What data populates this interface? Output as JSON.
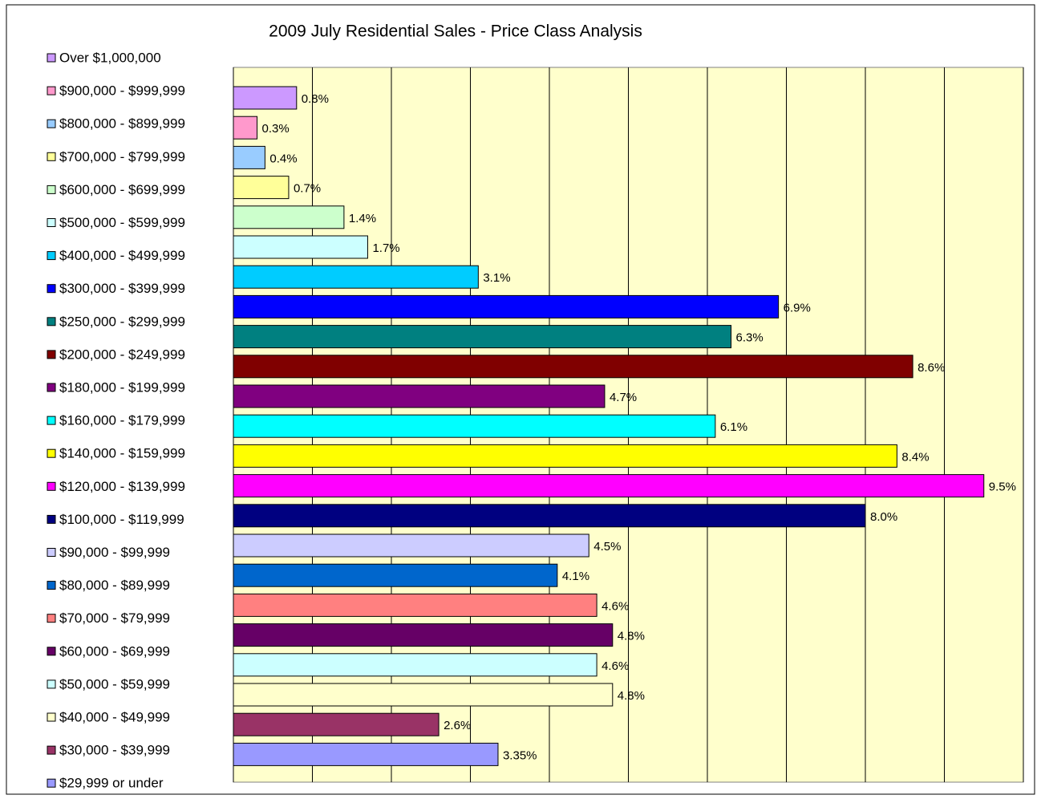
{
  "chart_data": {
    "type": "bar",
    "orientation": "horizontal",
    "title": "2009 July Residential Sales - Price Class Analysis",
    "categories": [
      "Over $1,000,000",
      "$900,000 - $999,999",
      "$800,000 - $899,999",
      "$700,000 - $799,999",
      "$600,000 - $699,999",
      "$500,000 - $599,999",
      "$400,000 - $499,999",
      "$300,000 - $399,999",
      "$250,000 - $299,999",
      "$200,000 - $249,999",
      "$180,000 - $199,999",
      "$160,000 - $179,999",
      "$140,000 - $159,999",
      "$120,000 - $139,999",
      "$100,000 - $119,999",
      "$90,000 - $99,999",
      "$80,000 - $89,999",
      "$70,000 - $79,999",
      "$60,000 - $69,999",
      "$50,000 - $59,999",
      "$40,000 - $49,999",
      "$30,000 - $39,999",
      "$29,999 or under"
    ],
    "values": [
      0.8,
      0.3,
      0.4,
      0.7,
      1.4,
      1.7,
      3.1,
      6.9,
      6.3,
      8.6,
      4.7,
      6.1,
      8.4,
      9.5,
      8.0,
      4.5,
      4.1,
      4.6,
      4.8,
      4.6,
      4.8,
      2.6,
      3.35
    ],
    "value_labels": [
      "0.8%",
      "0.3%",
      "0.4%",
      "0.7%",
      "1.4%",
      "1.7%",
      "3.1%",
      "6.9%",
      "6.3%",
      "8.6%",
      "4.7%",
      "6.1%",
      "8.4%",
      "9.5%",
      "8.0%",
      "4.5%",
      "4.1%",
      "4.6%",
      "4.8%",
      "4.6%",
      "4.8%",
      "2.6%",
      "3.35%"
    ],
    "colors": [
      "#cc99ff",
      "#ff99cc",
      "#99ccff",
      "#ffff99",
      "#ccffcc",
      "#ccffff",
      "#00ccff",
      "#0000ff",
      "#008080",
      "#800000",
      "#800080",
      "#00ffff",
      "#ffff00",
      "#ff00ff",
      "#000080",
      "#ccccff",
      "#0066cc",
      "#ff8080",
      "#660066",
      "#ccffff",
      "#ffffcc",
      "#993366",
      "#9999ff"
    ],
    "xlim": [
      0,
      10
    ],
    "xticks": [
      0,
      1,
      2,
      3,
      4,
      5,
      6,
      7,
      8,
      9,
      10
    ],
    "grid": true,
    "plot_background": "#ffffcc",
    "legend": "left"
  }
}
